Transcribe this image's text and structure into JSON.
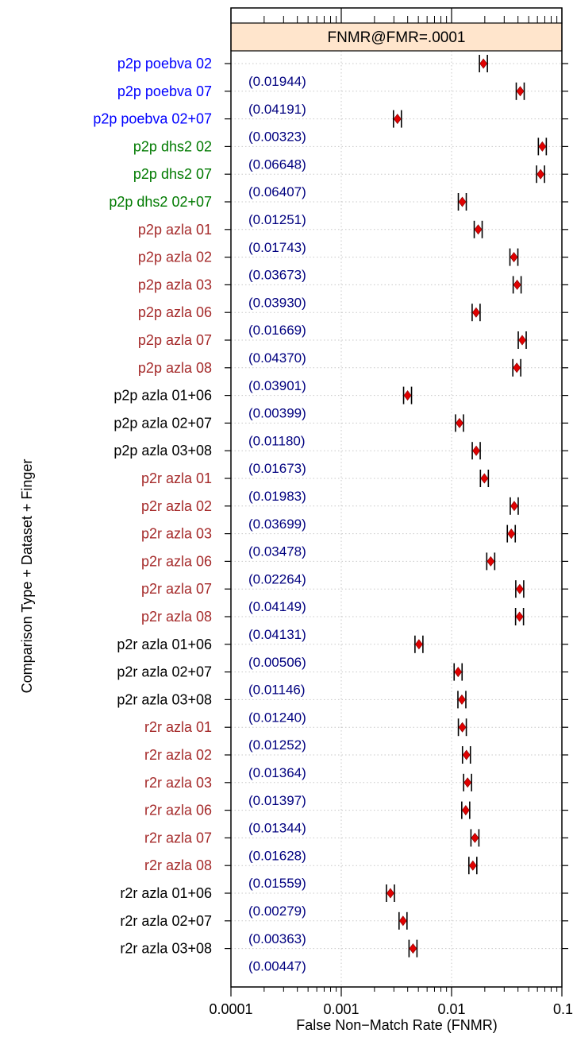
{
  "chart_data": {
    "type": "dot",
    "panel_title": "FNMR@FMR=.0001",
    "xlabel": "False Non−Match Rate (FNMR)",
    "ylabel": "Comparison Type + Dataset + Finger",
    "xscale": "log",
    "xlim": [
      0.0001,
      0.1
    ],
    "x_tick_labels": [
      "0.0001",
      "0.001",
      "0.01",
      "0.1"
    ],
    "x_tick_values": [
      0.0001,
      0.001,
      0.01,
      0.1
    ],
    "grid": true,
    "colors": {
      "strip": "#ffe5cc",
      "point": "#e00000",
      "value_label": "#00007f",
      "group_blue": "#0000ff",
      "group_green": "#007a00",
      "group_brown": "#a52a2a",
      "group_black": "#000000"
    },
    "rows": [
      {
        "label": "p2p poebva 02",
        "value": 0.01944,
        "value_label": "(0.01944)",
        "color": "#0000ff"
      },
      {
        "label": "p2p poebva 07",
        "value": 0.04191,
        "value_label": "(0.04191)",
        "color": "#0000ff"
      },
      {
        "label": "p2p poebva 02+07",
        "value": 0.00323,
        "value_label": "(0.00323)",
        "color": "#0000ff"
      },
      {
        "label": "p2p dhs2 02",
        "value": 0.06648,
        "value_label": "(0.06648)",
        "color": "#007a00"
      },
      {
        "label": "p2p dhs2 07",
        "value": 0.06407,
        "value_label": "(0.06407)",
        "color": "#007a00"
      },
      {
        "label": "p2p dhs2 02+07",
        "value": 0.01251,
        "value_label": "(0.01251)",
        "color": "#007a00"
      },
      {
        "label": "p2p azla 01",
        "value": 0.01743,
        "value_label": "(0.01743)",
        "color": "#a52a2a"
      },
      {
        "label": "p2p azla 02",
        "value": 0.03673,
        "value_label": "(0.03673)",
        "color": "#a52a2a"
      },
      {
        "label": "p2p azla 03",
        "value": 0.0393,
        "value_label": "(0.03930)",
        "color": "#a52a2a"
      },
      {
        "label": "p2p azla 06",
        "value": 0.01669,
        "value_label": "(0.01669)",
        "color": "#a52a2a"
      },
      {
        "label": "p2p azla 07",
        "value": 0.0437,
        "value_label": "(0.04370)",
        "color": "#a52a2a"
      },
      {
        "label": "p2p azla 08",
        "value": 0.03901,
        "value_label": "(0.03901)",
        "color": "#a52a2a"
      },
      {
        "label": "p2p azla 01+06",
        "value": 0.00399,
        "value_label": "(0.00399)",
        "color": "#000000"
      },
      {
        "label": "p2p azla 02+07",
        "value": 0.0118,
        "value_label": "(0.01180)",
        "color": "#000000"
      },
      {
        "label": "p2p azla 03+08",
        "value": 0.01673,
        "value_label": "(0.01673)",
        "color": "#000000"
      },
      {
        "label": "p2r azla 01",
        "value": 0.01983,
        "value_label": "(0.01983)",
        "color": "#a52a2a"
      },
      {
        "label": "p2r azla 02",
        "value": 0.03699,
        "value_label": "(0.03699)",
        "color": "#a52a2a"
      },
      {
        "label": "p2r azla 03",
        "value": 0.03478,
        "value_label": "(0.03478)",
        "color": "#a52a2a"
      },
      {
        "label": "p2r azla 06",
        "value": 0.02264,
        "value_label": "(0.02264)",
        "color": "#a52a2a"
      },
      {
        "label": "p2r azla 07",
        "value": 0.04149,
        "value_label": "(0.04149)",
        "color": "#a52a2a"
      },
      {
        "label": "p2r azla 08",
        "value": 0.04131,
        "value_label": "(0.04131)",
        "color": "#a52a2a"
      },
      {
        "label": "p2r azla 01+06",
        "value": 0.00506,
        "value_label": "(0.00506)",
        "color": "#000000"
      },
      {
        "label": "p2r azla 02+07",
        "value": 0.01146,
        "value_label": "(0.01146)",
        "color": "#000000"
      },
      {
        "label": "p2r azla 03+08",
        "value": 0.0124,
        "value_label": "(0.01240)",
        "color": "#000000"
      },
      {
        "label": "r2r azla 01",
        "value": 0.01252,
        "value_label": "(0.01252)",
        "color": "#a52a2a"
      },
      {
        "label": "r2r azla 02",
        "value": 0.01364,
        "value_label": "(0.01364)",
        "color": "#a52a2a"
      },
      {
        "label": "r2r azla 03",
        "value": 0.01397,
        "value_label": "(0.01397)",
        "color": "#a52a2a"
      },
      {
        "label": "r2r azla 06",
        "value": 0.01344,
        "value_label": "(0.01344)",
        "color": "#a52a2a"
      },
      {
        "label": "r2r azla 07",
        "value": 0.01628,
        "value_label": "(0.01628)",
        "color": "#a52a2a"
      },
      {
        "label": "r2r azla 08",
        "value": 0.01559,
        "value_label": "(0.01559)",
        "color": "#a52a2a"
      },
      {
        "label": "r2r azla 01+06",
        "value": 0.00279,
        "value_label": "(0.00279)",
        "color": "#000000"
      },
      {
        "label": "r2r azla 02+07",
        "value": 0.00363,
        "value_label": "(0.00363)",
        "color": "#000000"
      },
      {
        "label": "r2r azla 03+08",
        "value": 0.00447,
        "value_label": "(0.00447)",
        "color": "#000000"
      }
    ]
  }
}
